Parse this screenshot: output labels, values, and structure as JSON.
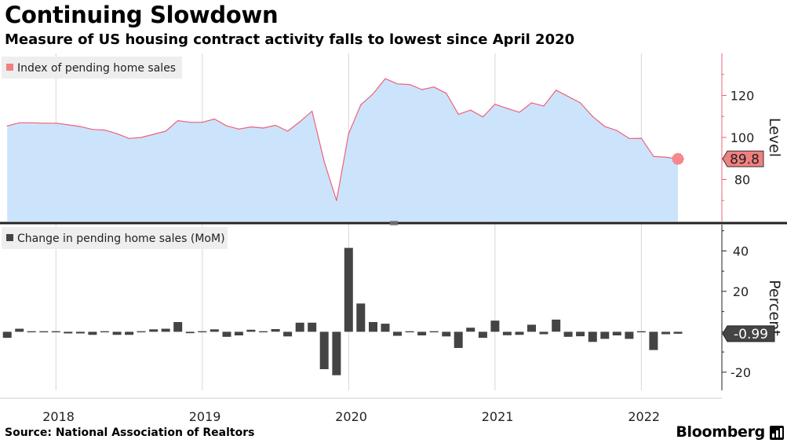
{
  "header": {
    "title": "Continuing Slowdown",
    "subtitle": "Measure of US housing contract activity falls to lowest since April 2020"
  },
  "footer": {
    "source": "Source:  National Association of Realtors",
    "brand": "Bloomberg"
  },
  "colors": {
    "line": "#f0607a",
    "area": "#cce4fb",
    "bar": "#444444",
    "divider": "#222222",
    "axis": "#f0607a",
    "callout_top": "#f08080",
    "callout_bottom": "#444444"
  },
  "chart_data": [
    {
      "type": "area",
      "legend": "Index of pending home sales",
      "legend_placement": "top-left",
      "ylabel": "Level",
      "ylim": [
        60,
        140
      ],
      "yticks": [
        80,
        100,
        120
      ],
      "x_range": [
        2017.65,
        2022.55
      ],
      "callout": {
        "label": "89.8",
        "value": 89.8,
        "x": 2022.25
      },
      "x": [
        2017.667,
        2017.75,
        2017.833,
        2017.917,
        2018.0,
        2018.083,
        2018.167,
        2018.25,
        2018.333,
        2018.417,
        2018.5,
        2018.583,
        2018.667,
        2018.75,
        2018.833,
        2018.917,
        2019.0,
        2019.083,
        2019.167,
        2019.25,
        2019.333,
        2019.417,
        2019.5,
        2019.583,
        2019.667,
        2019.75,
        2019.833,
        2019.917,
        2020.0,
        2020.083,
        2020.167,
        2020.25,
        2020.333,
        2020.417,
        2020.5,
        2020.583,
        2020.667,
        2020.75,
        2020.833,
        2020.917,
        2021.0,
        2021.083,
        2021.167,
        2021.25,
        2021.333,
        2021.417,
        2021.5,
        2021.583,
        2021.667,
        2021.75,
        2021.833,
        2021.917,
        2022.0,
        2022.083,
        2022.167,
        2022.25
      ],
      "values": [
        105.5,
        107.0,
        107.0,
        106.8,
        106.8,
        106.0,
        105.2,
        103.8,
        103.5,
        101.8,
        99.5,
        100.0,
        101.5,
        103.0,
        108.0,
        107.2,
        107.2,
        108.8,
        105.5,
        104.0,
        105.0,
        104.5,
        105.8,
        103.0,
        107.5,
        112.5,
        88.5,
        70.0,
        101.8,
        115.5,
        120.8,
        128.0,
        125.5,
        125.2,
        122.8,
        124.0,
        121.0,
        111.0,
        113.0,
        109.8,
        115.8,
        113.8,
        112.0,
        116.5,
        115.0,
        122.5,
        119.5,
        116.5,
        110.0,
        105.2,
        103.3,
        99.5,
        99.6,
        91.0,
        90.6,
        89.8
      ]
    },
    {
      "type": "bar",
      "legend": "Change in pending home sales (MoM)",
      "legend_placement": "top-left",
      "ylabel": "Percent",
      "ylim": [
        -29,
        53
      ],
      "yticks": [
        40,
        20,
        0,
        -20
      ],
      "ytick_labels": [
        "40",
        "20",
        "",
        "-20"
      ],
      "x_range": [
        2017.65,
        2022.55
      ],
      "callout": {
        "label": "-0.99",
        "value": -0.99,
        "x": 2022.25
      },
      "xtick_labels": [
        "2018",
        "2019",
        "2020",
        "2021",
        "2022"
      ],
      "xticks": [
        2018.0,
        2019.0,
        2020.0,
        2021.0,
        2022.0
      ],
      "x": [
        2017.667,
        2017.75,
        2017.833,
        2017.917,
        2018.0,
        2018.083,
        2018.167,
        2018.25,
        2018.333,
        2018.417,
        2018.5,
        2018.583,
        2018.667,
        2018.75,
        2018.833,
        2018.917,
        2019.0,
        2019.083,
        2019.167,
        2019.25,
        2019.333,
        2019.417,
        2019.5,
        2019.583,
        2019.667,
        2019.75,
        2019.833,
        2019.917,
        2020.0,
        2020.083,
        2020.167,
        2020.25,
        2020.333,
        2020.417,
        2020.5,
        2020.583,
        2020.667,
        2020.75,
        2020.833,
        2020.917,
        2021.0,
        2021.083,
        2021.167,
        2021.25,
        2021.333,
        2021.417,
        2021.5,
        2021.583,
        2021.667,
        2021.75,
        2021.833,
        2021.917,
        2022.0,
        2022.083,
        2022.167,
        2022.25
      ],
      "values": [
        -3.0,
        1.5,
        -0.3,
        0.0,
        -0.3,
        -0.8,
        -0.8,
        -1.5,
        -0.5,
        -1.5,
        -1.5,
        0.2,
        1.2,
        1.5,
        4.8,
        -0.7,
        0.0,
        1.2,
        -2.5,
        -1.8,
        1.0,
        -0.5,
        1.3,
        -2.3,
        4.5,
        4.5,
        -18.5,
        -21.5,
        41.5,
        14.0,
        4.8,
        4.0,
        -2.0,
        -0.2,
        -1.8,
        0.5,
        -2.3,
        -8.0,
        2.0,
        -3.0,
        5.5,
        -1.7,
        -1.5,
        3.5,
        -1.2,
        6.0,
        -2.5,
        -2.2,
        -5.0,
        -3.5,
        -1.8,
        -3.5,
        0.0,
        -9.0,
        -1.2,
        -0.99
      ]
    }
  ]
}
